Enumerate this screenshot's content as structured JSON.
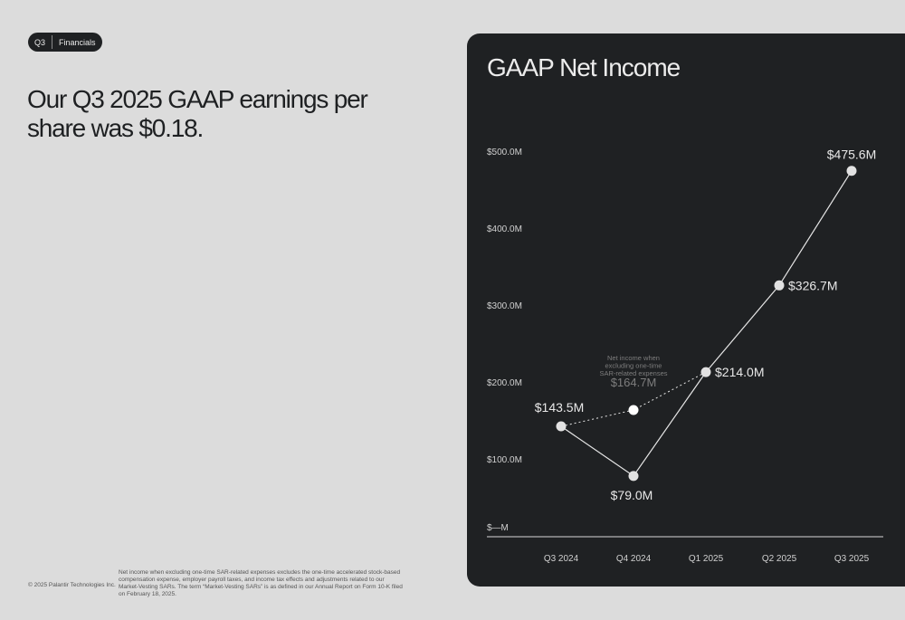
{
  "badge": {
    "section": "Q3",
    "topic": "Financials"
  },
  "headline": "Our Q3 2025 GAAP earnings per share was $0.18.",
  "footer": {
    "copyright": "© 2025 Palantir Technologies Inc.",
    "footnote": "Net income when excluding one-time SAR-related expenses excludes the one-time accelerated stock-based compensation expense, employer payroll taxes, and income tax effects and adjustments related to our Market-Vesting SARs. The term “Market-Vesting SARs” is as defined in our Annual Report on Form 10-K filed on February 18, 2025."
  },
  "colors": {
    "panel": "#1f2123",
    "line": "#e6e6e6",
    "muted": "#7d7d7d"
  },
  "chart_data": {
    "type": "line",
    "title": "GAAP Net Income",
    "categories": [
      "Q3 2024",
      "Q4 2024",
      "Q1 2025",
      "Q2 2025",
      "Q3 2025"
    ],
    "y_ticks": [
      "$—M",
      "$100.0M",
      "$200.0M",
      "$300.0M",
      "$400.0M",
      "$500.0M"
    ],
    "ylim": [
      0,
      500
    ],
    "series": [
      {
        "values": [
          143.5,
          79.0,
          214.0,
          326.7,
          475.6
        ],
        "labels": [
          "$143.5M",
          "$79.0M",
          "$214.0M",
          "$326.7M",
          "$475.6M"
        ]
      }
    ],
    "annotation": {
      "text_lines": [
        "Net income when",
        "excluding one-time",
        "SAR-related expenses"
      ],
      "values": [
        143.5,
        164.7,
        214.0
      ],
      "value_label": "$164.7M"
    }
  }
}
